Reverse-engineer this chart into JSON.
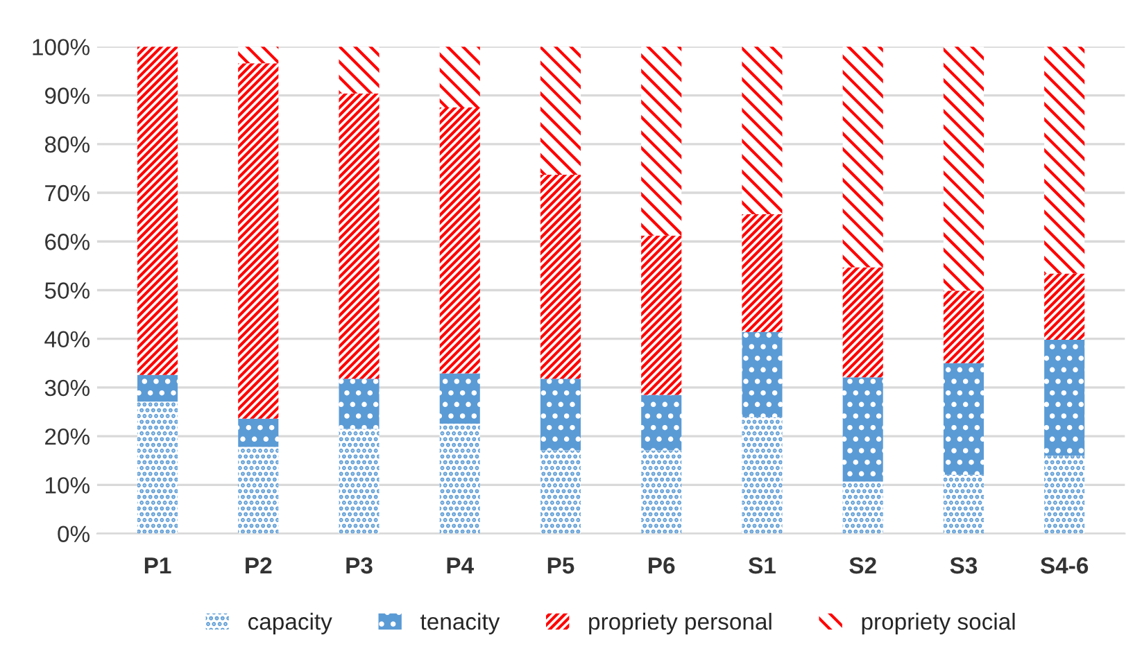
{
  "chart_data": {
    "type": "bar",
    "stacked": true,
    "categories": [
      "P1",
      "P2",
      "P3",
      "P4",
      "P5",
      "P6",
      "S1",
      "S2",
      "S3",
      "S4-6"
    ],
    "series": [
      {
        "name": "capacity",
        "color": "#5b9bd5",
        "values": [
          27.1,
          17.8,
          21.5,
          22.6,
          17.1,
          17.1,
          23.9,
          10.7,
          12.1,
          16.0
        ]
      },
      {
        "name": "tenacity",
        "color": "#5b9bd5",
        "values": [
          5.5,
          5.8,
          10.3,
          10.3,
          14.7,
          11.4,
          17.5,
          21.4,
          22.9,
          23.8
        ]
      },
      {
        "name": "propriety personal",
        "color": "#ff0000",
        "values": [
          67.4,
          73.0,
          58.6,
          54.6,
          41.9,
          32.7,
          24.2,
          22.6,
          14.9,
          13.6
        ]
      },
      {
        "name": "propriety social",
        "color": "#ff0000",
        "values": [
          0.0,
          3.4,
          9.6,
          12.5,
          26.3,
          38.8,
          34.4,
          45.3,
          50.1,
          46.6
        ]
      }
    ],
    "ylim": [
      0,
      100
    ],
    "yticks": [
      {
        "value": 0,
        "label": "0%"
      },
      {
        "value": 10,
        "label": "10%"
      },
      {
        "value": 20,
        "label": "20%"
      },
      {
        "value": 30,
        "label": "30%"
      },
      {
        "value": 40,
        "label": "40%"
      },
      {
        "value": 50,
        "label": "50%"
      },
      {
        "value": 60,
        "label": "60%"
      },
      {
        "value": 70,
        "label": "70%"
      },
      {
        "value": 80,
        "label": "80%"
      },
      {
        "value": 90,
        "label": "90%"
      },
      {
        "value": 100,
        "label": "100%"
      }
    ],
    "grid": "y",
    "legend": "bottom"
  }
}
